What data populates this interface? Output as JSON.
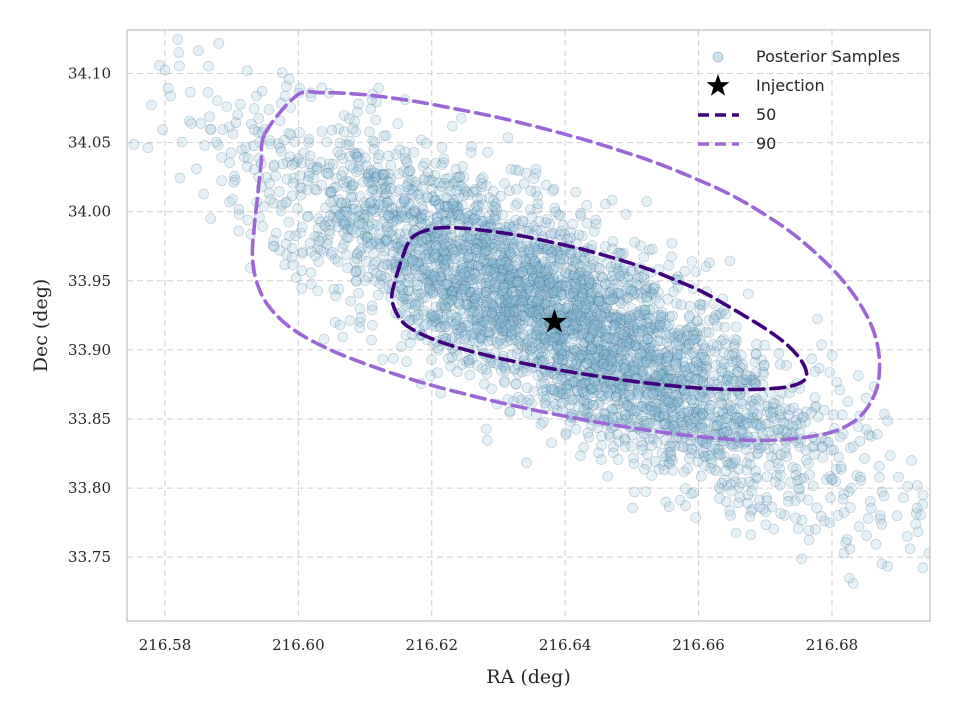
{
  "chart_data": {
    "type": "scatter",
    "title": "",
    "xlabel": "RA (deg)",
    "ylabel": "Dec (deg)",
    "xlim": [
      216.5743,
      216.6947
    ],
    "ylim": [
      33.7038,
      34.1315
    ],
    "xticks": [
      216.58,
      216.6,
      216.62,
      216.64,
      216.66,
      216.68
    ],
    "xtick_labels": [
      "216.58",
      "216.60",
      "216.62",
      "216.64",
      "216.66",
      "216.68"
    ],
    "yticks": [
      33.75,
      33.8,
      33.85,
      33.9,
      33.95,
      34.0,
      34.05,
      34.1
    ],
    "ytick_labels": [
      "33.75",
      "33.80",
      "33.85",
      "33.90",
      "33.95",
      "34.00",
      "34.05",
      "34.10"
    ],
    "grid": true,
    "legend_position": "top-right",
    "samples": {
      "name": "Posterior Samples",
      "color": "#5b9ac4",
      "center": [
        216.6384,
        33.9244
      ],
      "std_x": 0.0208,
      "std_y": 0.0638,
      "correlation": -0.83,
      "count": 4000
    },
    "injection": {
      "name": "Injection",
      "x": 216.6384,
      "y": 33.9202,
      "color": "#000000"
    },
    "contours": [
      {
        "name": "50",
        "color": "#3f007d",
        "points": [
          [
            216.6175,
            33.983
          ],
          [
            216.6204,
            33.9879
          ],
          [
            216.624,
            33.9883
          ],
          [
            216.6283,
            33.9862
          ],
          [
            216.6331,
            33.9828
          ],
          [
            216.638,
            33.9779
          ],
          [
            216.643,
            33.9723
          ],
          [
            216.6478,
            33.9657
          ],
          [
            216.6525,
            33.9584
          ],
          [
            216.6565,
            33.9506
          ],
          [
            216.6604,
            33.9425
          ],
          [
            216.6636,
            33.9339
          ],
          [
            216.6669,
            33.9246
          ],
          [
            216.67,
            33.9154
          ],
          [
            216.6728,
            33.9057
          ],
          [
            216.6748,
            33.8961
          ],
          [
            216.676,
            33.8868
          ],
          [
            216.676,
            33.8788
          ],
          [
            216.6738,
            33.8737
          ],
          [
            216.67,
            33.8717
          ],
          [
            216.6655,
            33.8713
          ],
          [
            216.6603,
            33.8723
          ],
          [
            216.655,
            33.8745
          ],
          [
            216.6495,
            33.8777
          ],
          [
            216.644,
            33.8816
          ],
          [
            216.6384,
            33.886
          ],
          [
            216.633,
            33.891
          ],
          [
            216.6277,
            33.8967
          ],
          [
            216.6228,
            33.9033
          ],
          [
            216.6188,
            33.9106
          ],
          [
            216.6159,
            33.9189
          ],
          [
            216.6145,
            33.9288
          ],
          [
            216.614,
            33.9383
          ],
          [
            216.6144,
            33.9482
          ],
          [
            216.615,
            33.9582
          ],
          [
            216.6157,
            33.9682
          ],
          [
            216.6163,
            33.9758
          ]
        ]
      },
      {
        "name": "90",
        "color": "#9c66d6",
        "points": [
          [
            216.595,
            34.0567
          ],
          [
            216.5998,
            34.0843
          ],
          [
            216.6035,
            34.0861
          ],
          [
            216.6078,
            34.0855
          ],
          [
            216.6125,
            34.0833
          ],
          [
            216.6178,
            34.0796
          ],
          [
            216.6235,
            34.0745
          ],
          [
            216.6295,
            34.0687
          ],
          [
            216.6356,
            34.0616
          ],
          [
            216.6417,
            34.0538
          ],
          [
            216.6476,
            34.0452
          ],
          [
            216.6534,
            34.0358
          ],
          [
            216.659,
            34.025
          ],
          [
            216.6645,
            34.013
          ],
          [
            216.6695,
            33.9993
          ],
          [
            216.674,
            33.9846
          ],
          [
            216.6779,
            33.9686
          ],
          [
            216.6814,
            33.9515
          ],
          [
            216.6842,
            33.9333
          ],
          [
            216.6862,
            33.9141
          ],
          [
            216.6871,
            33.8938
          ],
          [
            216.6867,
            33.8718
          ],
          [
            216.6844,
            33.8527
          ],
          [
            216.6808,
            33.8419
          ],
          [
            216.6766,
            33.8372
          ],
          [
            216.672,
            33.8348
          ],
          [
            216.6667,
            33.8348
          ],
          [
            216.6607,
            33.8369
          ],
          [
            216.6542,
            33.8406
          ],
          [
            216.6472,
            33.8457
          ],
          [
            216.6401,
            33.8519
          ],
          [
            216.6328,
            33.8591
          ],
          [
            216.6255,
            33.8674
          ],
          [
            216.618,
            33.8771
          ],
          [
            216.611,
            33.8882
          ],
          [
            216.6043,
            33.9011
          ],
          [
            216.599,
            33.9155
          ],
          [
            216.5955,
            33.9319
          ],
          [
            216.5937,
            33.9498
          ],
          [
            216.5931,
            33.969
          ],
          [
            216.5934,
            33.99
          ],
          [
            216.5939,
            34.012
          ],
          [
            216.5944,
            34.0348
          ]
        ]
      }
    ]
  },
  "legend": {
    "items": [
      "Posterior Samples",
      "Injection",
      "50",
      "90"
    ]
  }
}
